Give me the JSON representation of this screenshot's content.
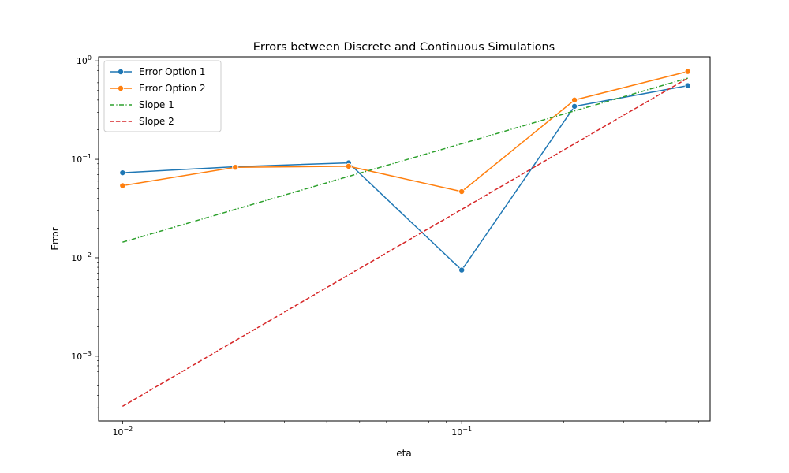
{
  "chart_data": {
    "type": "line",
    "title": "Errors between Discrete and Continuous Simulations",
    "xlabel": "eta",
    "ylabel": "Error",
    "xscale": "log",
    "yscale": "log",
    "xlim": [
      0.0085,
      0.54
    ],
    "ylim": [
      0.00022,
      1.1
    ],
    "grid": false,
    "legend_position": "top-left",
    "x": [
      0.01,
      0.0215,
      0.0464,
      0.1,
      0.215,
      0.464
    ],
    "series": [
      {
        "name": "Error Option 1",
        "style": "solid-marker",
        "color": "#1f77b4",
        "values": [
          0.073,
          0.084,
          0.092,
          0.0075,
          0.345,
          0.56
        ]
      },
      {
        "name": "Error Option 2",
        "style": "solid-marker",
        "color": "#ff7f0e",
        "values": [
          0.054,
          0.083,
          0.085,
          0.047,
          0.4,
          0.78
        ]
      },
      {
        "name": "Slope 1",
        "style": "dashdot",
        "color": "#2ca02c",
        "values": [
          0.0144,
          0.031,
          0.067,
          0.144,
          0.31,
          0.667
        ]
      },
      {
        "name": "Slope 2",
        "style": "dashed",
        "color": "#d62728",
        "values": [
          0.00031,
          0.00144,
          0.0067,
          0.031,
          0.144,
          0.667
        ]
      }
    ],
    "x_ticks": [
      {
        "value": 0.01,
        "base": "10",
        "exp": "−2"
      },
      {
        "value": 0.1,
        "base": "10",
        "exp": "−1"
      }
    ],
    "y_ticks": [
      {
        "value": 0.001,
        "base": "10",
        "exp": "−3"
      },
      {
        "value": 0.01,
        "base": "10",
        "exp": "−2"
      },
      {
        "value": 0.1,
        "base": "10",
        "exp": "−1"
      },
      {
        "value": 1,
        "base": "10",
        "exp": "0"
      }
    ]
  }
}
